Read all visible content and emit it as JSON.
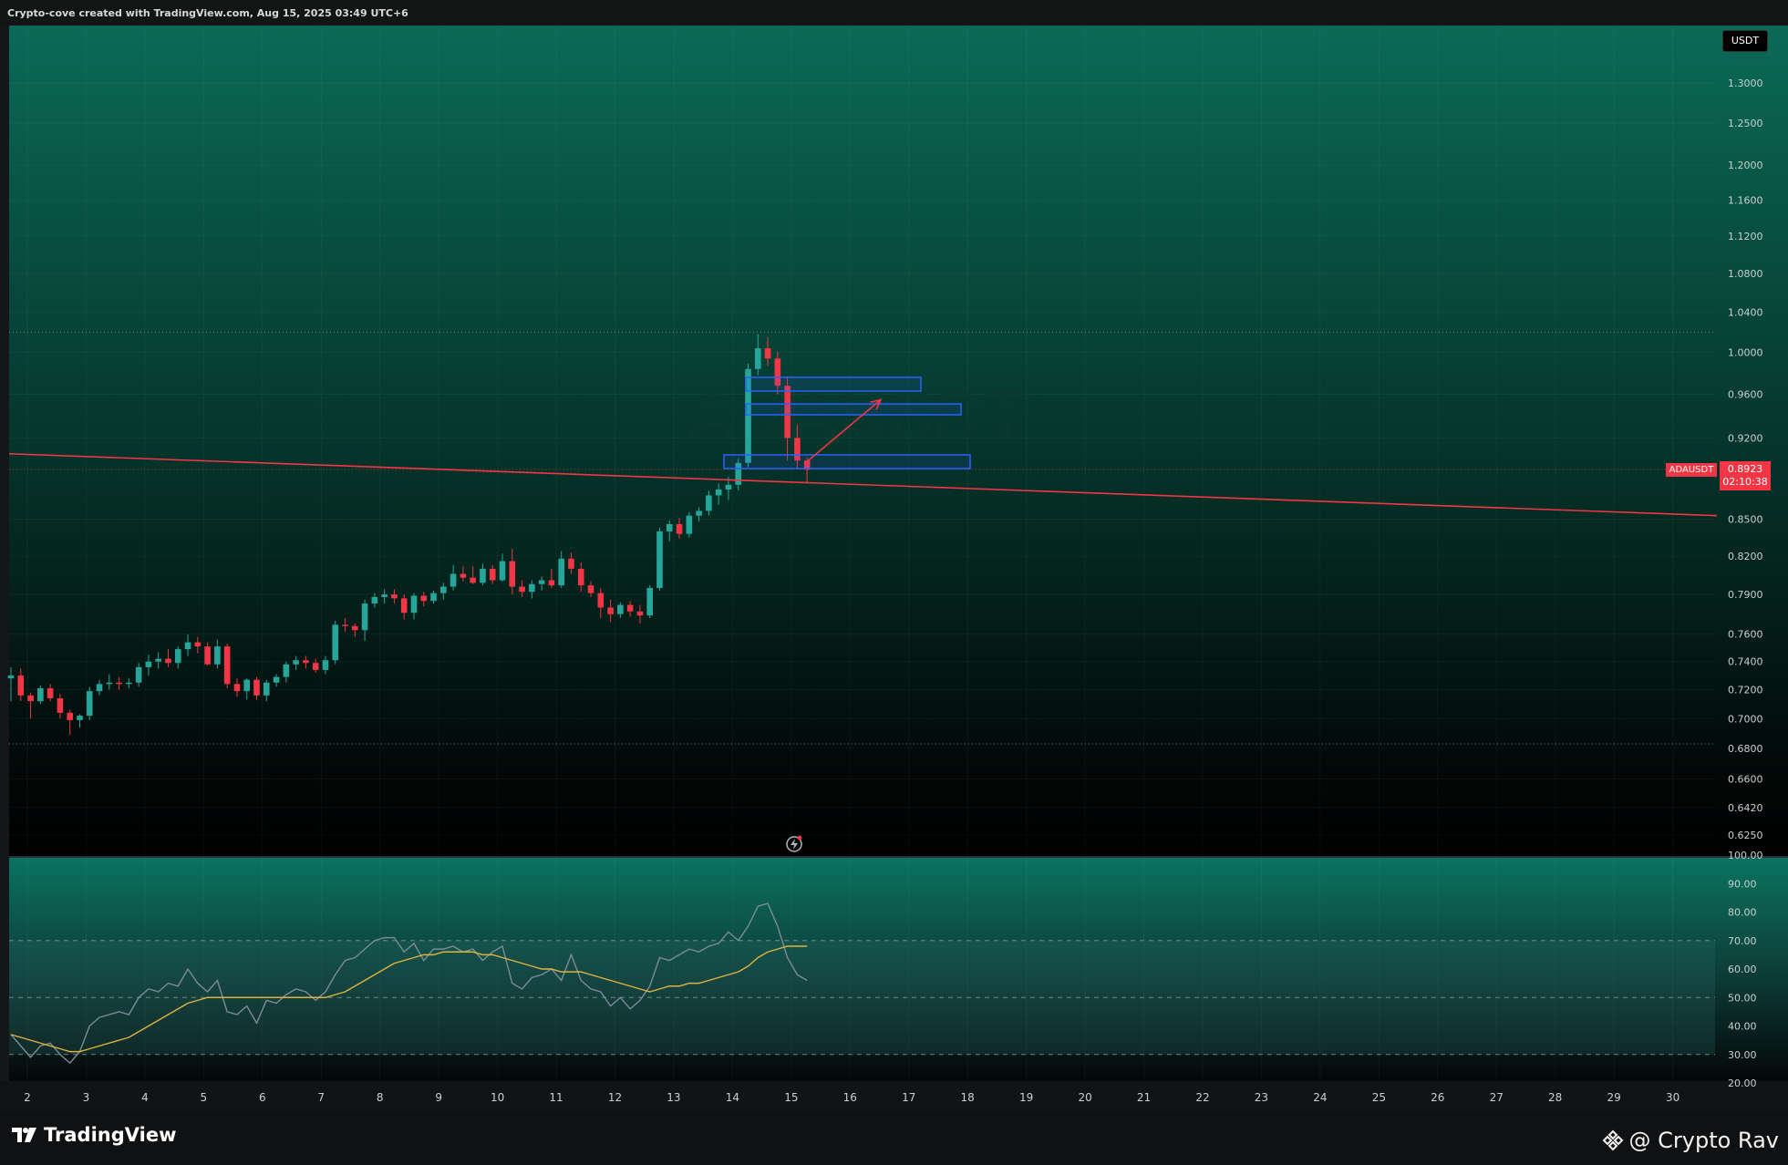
{
  "header": {
    "credit": "Crypto-cove created with TradingView.com, Aug 15, 2025 03:49 UTC+6"
  },
  "footer": {
    "brand": "TradingView",
    "author": "@ Crypto Rav"
  },
  "icons": {
    "brand_logo": "tradingview-logo-icon",
    "author_logo": "binance-logo-icon",
    "flash": "lightning-icon"
  },
  "colors": {
    "bullish": "#26a69a",
    "bearish": "#f23645",
    "trendline": "#f23645",
    "zone_border": "#2962ff",
    "rsi_line": "#7e8a95",
    "rsi_ma": "#e2b33c"
  },
  "chart_data": [
    {
      "type": "candlestick",
      "symbol": "ADAUSDT",
      "title": "",
      "currency": "USDT",
      "current_price": "0.8923",
      "countdown": "02:10:38",
      "y_ticks": [
        "1.3000",
        "1.2500",
        "1.2000",
        "1.1600",
        "1.1200",
        "1.0800",
        "1.0400",
        "1.0000",
        "0.9600",
        "0.9200",
        "0.8500",
        "0.8200",
        "0.7900",
        "0.7600",
        "0.7400",
        "0.7200",
        "0.7000",
        "0.6800",
        "0.6600",
        "0.6420",
        "0.6250"
      ],
      "x_ticks": [
        "2",
        "3",
        "4",
        "5",
        "6",
        "7",
        "8",
        "9",
        "10",
        "11",
        "12",
        "13",
        "14",
        "15",
        "16",
        "17",
        "18",
        "19",
        "20",
        "21",
        "22",
        "23",
        "24",
        "25",
        "26",
        "27",
        "28",
        "29",
        "30"
      ],
      "scale": "log",
      "candles_ohlc": [
        [
          0.728,
          0.736,
          0.712,
          0.73
        ],
        [
          0.73,
          0.735,
          0.712,
          0.716
        ],
        [
          0.716,
          0.718,
          0.7,
          0.712
        ],
        [
          0.712,
          0.723,
          0.71,
          0.721
        ],
        [
          0.721,
          0.724,
          0.712,
          0.714
        ],
        [
          0.714,
          0.717,
          0.7,
          0.704
        ],
        [
          0.704,
          0.706,
          0.689,
          0.699
        ],
        [
          0.699,
          0.703,
          0.694,
          0.702
        ],
        [
          0.702,
          0.722,
          0.699,
          0.719
        ],
        [
          0.719,
          0.727,
          0.716,
          0.724
        ],
        [
          0.724,
          0.731,
          0.72,
          0.725
        ],
        [
          0.725,
          0.729,
          0.72,
          0.724
        ],
        [
          0.724,
          0.728,
          0.721,
          0.725
        ],
        [
          0.725,
          0.739,
          0.722,
          0.736
        ],
        [
          0.736,
          0.745,
          0.73,
          0.74
        ],
        [
          0.74,
          0.747,
          0.735,
          0.742
        ],
        [
          0.742,
          0.749,
          0.736,
          0.739
        ],
        [
          0.739,
          0.751,
          0.735,
          0.749
        ],
        [
          0.749,
          0.76,
          0.744,
          0.754
        ],
        [
          0.754,
          0.758,
          0.746,
          0.751
        ],
        [
          0.751,
          0.754,
          0.737,
          0.738
        ],
        [
          0.738,
          0.756,
          0.735,
          0.751
        ],
        [
          0.751,
          0.753,
          0.721,
          0.724
        ],
        [
          0.724,
          0.728,
          0.715,
          0.719
        ],
        [
          0.719,
          0.728,
          0.713,
          0.727
        ],
        [
          0.727,
          0.729,
          0.713,
          0.716
        ],
        [
          0.716,
          0.727,
          0.712,
          0.725
        ],
        [
          0.725,
          0.731,
          0.722,
          0.729
        ],
        [
          0.729,
          0.74,
          0.725,
          0.738
        ],
        [
          0.738,
          0.744,
          0.734,
          0.741
        ],
        [
          0.741,
          0.744,
          0.735,
          0.739
        ],
        [
          0.739,
          0.742,
          0.732,
          0.734
        ],
        [
          0.734,
          0.744,
          0.731,
          0.741
        ],
        [
          0.741,
          0.77,
          0.738,
          0.767
        ],
        [
          0.767,
          0.772,
          0.762,
          0.766
        ],
        [
          0.766,
          0.768,
          0.758,
          0.763
        ],
        [
          0.763,
          0.786,
          0.755,
          0.783
        ],
        [
          0.783,
          0.791,
          0.78,
          0.788
        ],
        [
          0.788,
          0.794,
          0.783,
          0.79
        ],
        [
          0.79,
          0.794,
          0.783,
          0.787
        ],
        [
          0.787,
          0.79,
          0.771,
          0.776
        ],
        [
          0.776,
          0.791,
          0.771,
          0.789
        ],
        [
          0.789,
          0.792,
          0.781,
          0.785
        ],
        [
          0.785,
          0.793,
          0.783,
          0.791
        ],
        [
          0.791,
          0.799,
          0.786,
          0.796
        ],
        [
          0.796,
          0.813,
          0.793,
          0.806
        ],
        [
          0.806,
          0.812,
          0.8,
          0.803
        ],
        [
          0.803,
          0.812,
          0.798,
          0.799
        ],
        [
          0.799,
          0.814,
          0.797,
          0.81
        ],
        [
          0.81,
          0.813,
          0.798,
          0.801
        ],
        [
          0.801,
          0.822,
          0.8,
          0.816
        ],
        [
          0.816,
          0.826,
          0.79,
          0.796
        ],
        [
          0.796,
          0.801,
          0.788,
          0.792
        ],
        [
          0.792,
          0.801,
          0.787,
          0.798
        ],
        [
          0.798,
          0.804,
          0.793,
          0.801
        ],
        [
          0.801,
          0.81,
          0.795,
          0.797
        ],
        [
          0.797,
          0.824,
          0.795,
          0.818
        ],
        [
          0.818,
          0.823,
          0.806,
          0.81
        ],
        [
          0.81,
          0.815,
          0.792,
          0.797
        ],
        [
          0.797,
          0.8,
          0.788,
          0.791
        ],
        [
          0.791,
          0.795,
          0.772,
          0.78
        ],
        [
          0.78,
          0.786,
          0.769,
          0.775
        ],
        [
          0.775,
          0.784,
          0.772,
          0.782
        ],
        [
          0.782,
          0.785,
          0.773,
          0.777
        ],
        [
          0.777,
          0.782,
          0.768,
          0.774
        ],
        [
          0.774,
          0.797,
          0.772,
          0.795
        ],
        [
          0.795,
          0.843,
          0.793,
          0.84
        ],
        [
          0.84,
          0.849,
          0.832,
          0.846
        ],
        [
          0.846,
          0.851,
          0.834,
          0.838
        ],
        [
          0.838,
          0.856,
          0.835,
          0.853
        ],
        [
          0.853,
          0.86,
          0.848,
          0.857
        ],
        [
          0.857,
          0.874,
          0.853,
          0.87
        ],
        [
          0.87,
          0.88,
          0.862,
          0.875
        ],
        [
          0.875,
          0.886,
          0.866,
          0.879
        ],
        [
          0.879,
          0.902,
          0.874,
          0.898
        ],
        [
          0.898,
          0.989,
          0.894,
          0.984
        ],
        [
          0.984,
          1.018,
          0.978,
          1.004
        ],
        [
          1.004,
          1.015,
          0.987,
          0.994
        ],
        [
          0.994,
          1.001,
          0.96,
          0.968
        ],
        [
          0.968,
          0.977,
          0.9,
          0.92
        ],
        [
          0.92,
          0.932,
          0.893,
          0.9
        ],
        [
          0.9,
          0.903,
          0.881,
          0.892
        ]
      ],
      "trendline": {
        "from": {
          "x": "start",
          "price": 0.906
        },
        "to": {
          "x": "30",
          "price": 0.853
        }
      },
      "levels": [
        1.02,
        0.683,
        0.8923
      ],
      "zones": [
        {
          "top": 0.976,
          "bottom": 0.963
        },
        {
          "top": 0.951,
          "bottom": 0.941
        },
        {
          "top": 0.905,
          "bottom": 0.893
        }
      ],
      "arrow": {
        "from_price": 0.897,
        "to_price": 0.955
      }
    },
    {
      "type": "line",
      "title": "",
      "y_ticks": [
        "100.00",
        "90.00",
        "80.00",
        "70.00",
        "60.00",
        "50.00",
        "40.00",
        "30.00",
        "20.00"
      ],
      "ylim": [
        20,
        100
      ],
      "bands": [
        70,
        50,
        30
      ],
      "series": [
        {
          "role": "rsi",
          "values": [
            37,
            33,
            29,
            33,
            34,
            30,
            27,
            31,
            40,
            43,
            44,
            45,
            44,
            50,
            53,
            52,
            55,
            54,
            60,
            55,
            52,
            56,
            45,
            44,
            47,
            41,
            49,
            48,
            51,
            53,
            52,
            49,
            52,
            58,
            63,
            64,
            67,
            70,
            71,
            71,
            66,
            69,
            63,
            67,
            67,
            68,
            66,
            67,
            63,
            66,
            68,
            55,
            53,
            57,
            58,
            60,
            56,
            65,
            56,
            53,
            52,
            47,
            50,
            46,
            49,
            54,
            64,
            63,
            65,
            67,
            66,
            68,
            69,
            73,
            70,
            75,
            82,
            83,
            75,
            64,
            58,
            56
          ]
        },
        {
          "role": "rsi_ma",
          "values": [
            37,
            36,
            35,
            34,
            33,
            32,
            31,
            31,
            32,
            33,
            34,
            35,
            36,
            38,
            40,
            42,
            44,
            46,
            48,
            49,
            50,
            50,
            50,
            50,
            50,
            50,
            50,
            50,
            50,
            50,
            50,
            50,
            50,
            51,
            52,
            54,
            56,
            58,
            60,
            62,
            63,
            64,
            65,
            65,
            66,
            66,
            66,
            66,
            65,
            65,
            64,
            63,
            62,
            61,
            60,
            60,
            59,
            59,
            59,
            58,
            57,
            56,
            55,
            54,
            53,
            52,
            53,
            54,
            54,
            55,
            55,
            56,
            57,
            58,
            59,
            61,
            64,
            66,
            67,
            68,
            68,
            68
          ]
        }
      ]
    }
  ]
}
